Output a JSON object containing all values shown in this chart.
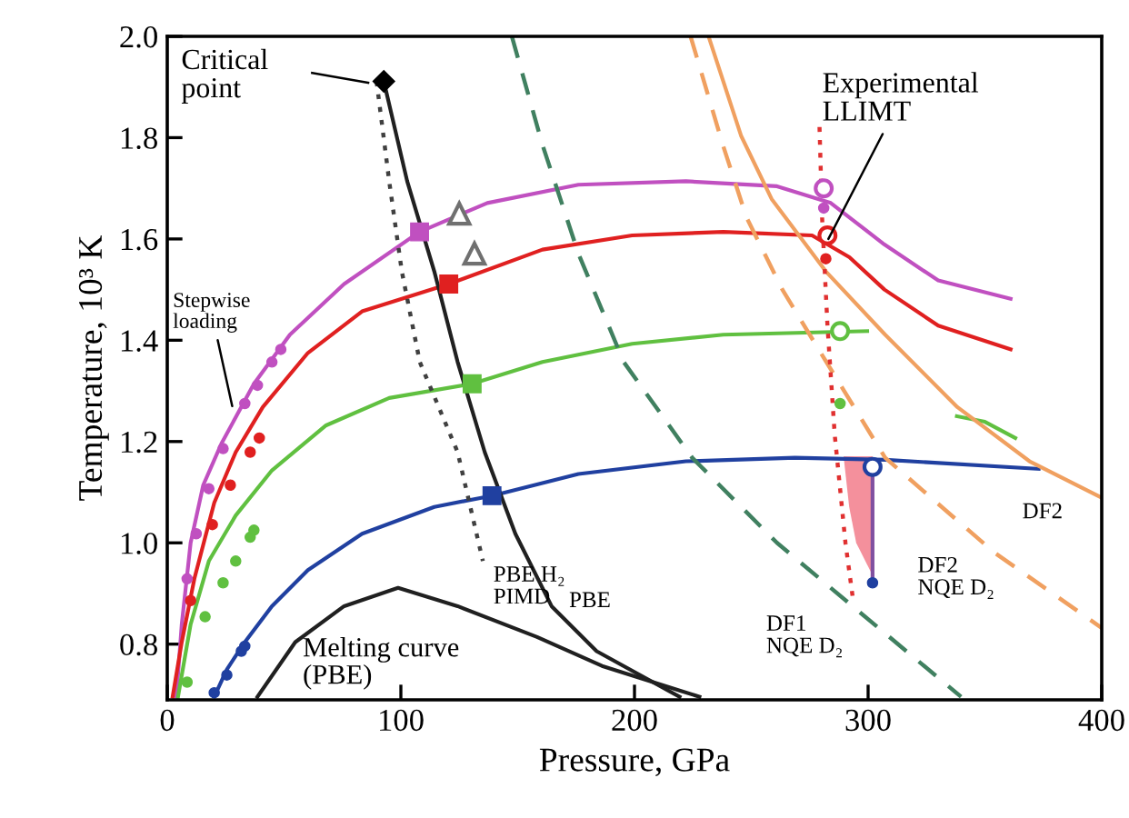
{
  "chart_data": {
    "type": "line",
    "xlabel": "Pressure, GPa",
    "ylabel": "Temperature, 10³ K",
    "xlim": [
      0,
      400
    ],
    "xticks": [
      0,
      100,
      200,
      300,
      400
    ],
    "ylim": [
      0.69,
      2.0
    ],
    "yticks": [
      0.8,
      {
        "value": 1.0,
        "label": "1.0"
      },
      1.2,
      1.4,
      1.6,
      1.8,
      {
        "value": 2.0,
        "label": "2.0"
      }
    ],
    "grid": false,
    "legend": false,
    "series": [
      {
        "type": "area",
        "color": "#f4909c",
        "x": [
          289.5,
          301.9,
          301.9,
          294.9,
          291.9
        ],
        "values": [
          1.171,
          1.171,
          0.936,
          1.0,
          1.071
        ]
      },
      {
        "color": "#c050c0",
        "x": [
          3.9,
          6.2,
          10.0,
          15.4,
          23.2,
          37.1,
          52.5,
          75.7,
          108,
          137,
          176,
          222,
          261,
          284,
          307,
          330,
          361
        ],
        "values": [
          0.696,
          0.839,
          1.0,
          1.114,
          1.196,
          1.314,
          1.411,
          1.511,
          1.614,
          1.671,
          1.707,
          1.714,
          1.704,
          1.671,
          1.589,
          1.518,
          1.482
        ]
      },
      {
        "color": "#e02020",
        "x": [
          2.3,
          6.2,
          11.6,
          20.1,
          29.3,
          40.9,
          60.2,
          83.4,
          120.5,
          160.6,
          199,
          238,
          276,
          292,
          307,
          330,
          361
        ],
        "values": [
          0.696,
          0.804,
          0.929,
          1.079,
          1.179,
          1.268,
          1.375,
          1.457,
          1.511,
          1.579,
          1.607,
          1.614,
          1.607,
          1.564,
          1.5,
          1.429,
          1.382
        ]
      },
      {
        "color": "#60c040",
        "x": [
          4.6,
          10,
          17.8,
          29.3,
          44.8,
          68,
          95,
          130.5,
          160.6,
          199,
          238,
          299.6
        ],
        "values": [
          0.696,
          0.839,
          0.964,
          1.054,
          1.143,
          1.232,
          1.286,
          1.314,
          1.357,
          1.393,
          1.411,
          1.418
        ]
      },
      {
        "color": "#60c040",
        "x": [
          338,
          350,
          363
        ],
        "values": [
          1.25,
          1.239,
          1.207
        ]
      },
      {
        "color": "#2040a0",
        "x": [
          20.1,
          25.5,
          33.2,
          44.8,
          60.2,
          83.4,
          114.3,
          139,
          176,
          222,
          268.7,
          307.3,
          373
        ],
        "values": [
          0.696,
          0.75,
          0.804,
          0.875,
          0.946,
          1.018,
          1.071,
          1.093,
          1.136,
          1.161,
          1.168,
          1.164,
          1.146
        ]
      },
      {
        "color": "#202020",
        "x": [
          92.7,
          102.7,
          114.3,
          124.3,
          135.9,
          149,
          164.5,
          183.8,
          219.3
        ],
        "values": [
          1.911,
          1.714,
          1.536,
          1.357,
          1.179,
          1.018,
          0.875,
          0.786,
          0.696
        ]
      },
      {
        "color": "#404040",
        "line_style": "dotted",
        "x": [
          89.6,
          95,
          100.4,
          108.1,
          124.3,
          135.1
        ],
        "values": [
          1.911,
          1.714,
          1.536,
          1.357,
          1.179,
          0.964
        ]
      },
      {
        "color": "#202020",
        "x": [
          38.6,
          54.8,
          75.7,
          98.8,
          124.3,
          158.3,
          186.1,
          227.8
        ],
        "values": [
          0.696,
          0.804,
          0.875,
          0.911,
          0.875,
          0.814,
          0.757,
          0.696
        ]
      },
      {
        "color": "#408060",
        "line_style": "dashed",
        "x": [
          147.5,
          160.6,
          176,
          195.4,
          224.7,
          261,
          307.3,
          339.8
        ],
        "values": [
          2.0,
          1.786,
          1.571,
          1.357,
          1.168,
          1.0,
          0.821,
          0.696
        ]
      },
      {
        "color": "#f0a060",
        "x": [
          231.7,
          245.6,
          258.7,
          281.9,
          307.3,
          338.2,
          369.1,
          400
        ],
        "values": [
          2.0,
          1.804,
          1.679,
          1.536,
          1.411,
          1.268,
          1.161,
          1.089
        ]
      },
      {
        "color": "#f0a060",
        "line_style": "dashed",
        "x": [
          224,
          237.8,
          247.9,
          263.3,
          278.8,
          307.3,
          353.7,
          400
        ],
        "values": [
          2.0,
          1.786,
          1.643,
          1.5,
          1.382,
          1.168,
          0.982,
          0.832
        ]
      },
      {
        "color": "#e03030",
        "line_style": "dotted",
        "x": [
          279.2,
          280.3,
          282.6,
          285.7,
          290.3,
          293.4
        ],
        "values": [
          1.821,
          1.643,
          1.429,
          1.214,
          1.0,
          0.893
        ]
      },
      {
        "color": "#8050a0",
        "x": [
          301.9,
          301.9
        ],
        "values": [
          1.15,
          0.921
        ]
      },
      {
        "type": "scatter",
        "marker": "circle",
        "color": "#c050c0",
        "x": [
          8.5,
          12.4,
          17.8,
          23.9,
          33.2,
          38.6,
          44.8,
          48.6,
          281
        ],
        "values": [
          0.929,
          1.018,
          1.107,
          1.186,
          1.275,
          1.311,
          1.357,
          1.382,
          1.661
        ]
      },
      {
        "type": "scatter",
        "marker": "circle",
        "color": "#e02020",
        "x": [
          10,
          19.3,
          27,
          35.5,
          39.4,
          281.9
        ],
        "values": [
          0.886,
          1.036,
          1.114,
          1.179,
          1.207,
          1.561
        ]
      },
      {
        "type": "scatter",
        "marker": "circle",
        "color": "#60c040",
        "x": [
          8.5,
          16.2,
          23.9,
          29.3,
          35.5,
          37.1,
          288
        ],
        "values": [
          0.725,
          0.854,
          0.921,
          0.964,
          1.011,
          1.025,
          1.275
        ]
      },
      {
        "type": "scatter",
        "marker": "circle",
        "color": "#2040a0",
        "x": [
          20.1,
          25.5,
          31.7,
          33.2,
          301.9
        ],
        "values": [
          0.704,
          0.739,
          0.786,
          0.796,
          0.921
        ]
      },
      {
        "type": "scatter",
        "marker": "square",
        "colors": [
          "#c050c0",
          "#e02020",
          "#60c040",
          "#2040a0"
        ],
        "x": [
          108,
          120.5,
          130.5,
          139
        ],
        "values": [
          1.614,
          1.511,
          1.314,
          1.093
        ]
      },
      {
        "type": "scatter",
        "marker": "triangle",
        "color": "#707070",
        "x": [
          125,
          131.5
        ],
        "values": [
          1.65,
          1.571
        ]
      },
      {
        "type": "scatter",
        "marker": "circle",
        "colors": [
          "#c050c0",
          "#e02020",
          "#60c040",
          "#2040a0"
        ],
        "x": [
          281,
          282.6,
          288,
          301.9
        ],
        "values": [
          1.7,
          1.607,
          1.418,
          1.15
        ]
      },
      {
        "type": "scatter",
        "marker": "diamond",
        "color": "#000000",
        "x": [
          92.7
        ],
        "values": [
          1.911
        ]
      }
    ],
    "annotations": [
      "Critical\npoint",
      {
        "text": "Experimental\nLLIMT",
        "x": 283,
        "y": 1.6
      },
      {
        "text": "Stepwise\nloading",
        "x": 27.8,
        "y": 1.27
      },
      "PBE H₂\nPIMD",
      "PBE",
      "Melting curve\n(PBE)",
      "DF1\nNQE D₂",
      "DF2\nNQE D₂",
      "DF2"
    ]
  }
}
